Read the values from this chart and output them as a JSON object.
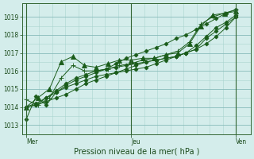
{
  "title": "",
  "xlabel": "Pression niveau de la mer( hPa )",
  "background_color": "#d4edeb",
  "grid_major_color": "#88bbbb",
  "grid_minor_color": "#aad4d0",
  "line_color": "#1a5c1a",
  "x_ticks_labels": [
    "Mer",
    "Jeu",
    "Ven"
  ],
  "ylim": [
    1012.5,
    1019.75
  ],
  "xlim": [
    -0.02,
    1.07
  ],
  "series": [
    [
      1013.3,
      1014.6,
      1014.1,
      1014.8,
      1015.2,
      1015.5,
      1015.7,
      1015.9,
      1016.1,
      1016.4,
      1016.7,
      1016.9,
      1017.1,
      1017.3,
      1017.5,
      1017.8,
      1018.0,
      1018.3,
      1018.6,
      1018.9,
      1019.2,
      1019.4
    ],
    [
      1014.0,
      1014.1,
      1014.3,
      1014.5,
      1014.7,
      1015.0,
      1015.3,
      1015.5,
      1015.7,
      1015.9,
      1016.1,
      1016.3,
      1016.5,
      1016.6,
      1016.7,
      1016.8,
      1017.0,
      1017.2,
      1017.8,
      1018.2,
      1018.6,
      1019.0
    ],
    [
      1014.0,
      1014.2,
      1014.5,
      1014.8,
      1015.1,
      1015.3,
      1015.5,
      1015.7,
      1015.8,
      1015.9,
      1016.0,
      1016.1,
      1016.2,
      1016.4,
      1016.6,
      1016.8,
      1017.0,
      1017.2,
      1017.5,
      1017.9,
      1018.4,
      1019.0
    ],
    [
      1014.0,
      1014.1,
      1014.5,
      1014.9,
      1015.3,
      1015.6,
      1015.8,
      1016.0,
      1016.1,
      1016.2,
      1016.3,
      1016.4,
      1016.5,
      1016.6,
      1016.7,
      1016.8,
      1017.0,
      1017.4,
      1017.9,
      1018.4,
      1018.7,
      1019.1
    ],
    [
      1014.0,
      1014.5,
      1015.0,
      1016.5,
      1016.8,
      1016.3,
      1016.2,
      1016.4,
      1016.6,
      1016.6,
      1016.7,
      1016.7,
      1016.9,
      1017.0,
      1017.5,
      1018.5,
      1019.1,
      1019.2,
      1019.3
    ],
    [
      1014.4,
      1014.1,
      1014.5,
      1015.6,
      1016.3,
      1016.0,
      1016.0,
      1016.1,
      1016.3,
      1016.4,
      1016.6,
      1016.7,
      1016.9,
      1017.1,
      1017.6,
      1018.6,
      1019.0,
      1019.2,
      1019.4
    ]
  ],
  "markers": [
    "D",
    "D",
    "D",
    "D",
    "^",
    "+"
  ],
  "marker_sizes": [
    2.5,
    2.5,
    2.5,
    2.5,
    4,
    4
  ],
  "linewidths": [
    0.7,
    0.7,
    0.7,
    0.7,
    0.7,
    0.7
  ],
  "yticks_major": [
    1013,
    1014,
    1015,
    1016,
    1017,
    1018,
    1019
  ],
  "tick_label_fontsize": 5.5,
  "xlabel_fontsize": 7
}
